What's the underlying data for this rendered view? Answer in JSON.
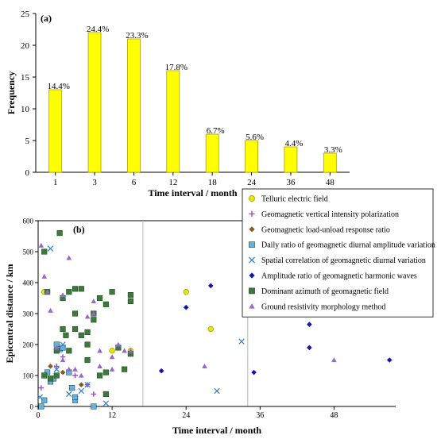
{
  "chart_data": [
    {
      "type": "bar",
      "panel_label": "(a)",
      "xlabel": "Time interval / month",
      "ylabel": "Frequency",
      "ylim": [
        0,
        25
      ],
      "yticks": [
        0,
        5,
        10,
        15,
        20,
        25
      ],
      "categories": [
        "1",
        "3",
        "6",
        "12",
        "18",
        "24",
        "36",
        "48"
      ],
      "values": [
        13,
        22,
        21,
        16,
        6,
        5,
        4,
        3
      ],
      "bar_labels": [
        "14.4%",
        "24.4%",
        "23.3%",
        "17.8%",
        "6.7%",
        "5.6%",
        "4.4%",
        "3.3%"
      ],
      "bar_color": "#ffff00",
      "grid": false
    },
    {
      "type": "scatter",
      "panel_label": "(b)",
      "xlabel": "Time interval / month",
      "ylabel": "Epicentral distance / km",
      "xlim": [
        0,
        58
      ],
      "ylim": [
        0,
        600
      ],
      "xticks": [
        0,
        12,
        24,
        36,
        48
      ],
      "yticks": [
        0,
        100,
        200,
        300,
        400,
        500,
        600
      ],
      "vertical_gridlines_at": [
        17,
        34
      ],
      "legend_position": "top-right",
      "series": [
        {
          "name": "Telluric electric field",
          "marker": "circle",
          "color": "#e6e600",
          "points": [
            [
              1,
              370
            ],
            [
              12,
              180
            ],
            [
              15,
              180
            ],
            [
              24,
              370
            ],
            [
              28,
              250
            ]
          ]
        },
        {
          "name": "Geomagnetic vertical intensity polarization",
          "marker": "plus",
          "color": "#9a4fc2",
          "points": [
            [
              0.5,
              60
            ],
            [
              1,
              100
            ],
            [
              3,
              130
            ],
            [
              4,
              160
            ],
            [
              6,
              100
            ],
            [
              8,
              70
            ],
            [
              9,
              40
            ]
          ]
        },
        {
          "name": "Geomagnetic load-unload response ratio",
          "marker": "diamond",
          "color": "#8b5a1e",
          "points": [
            [
              2,
              130
            ],
            [
              4,
              110
            ],
            [
              7,
              70
            ]
          ]
        },
        {
          "name": "Daily ratio of geomagnetic diurnal amplitude variation",
          "marker": "square",
          "color": "#5fb3e6",
          "points": [
            [
              0.5,
              0
            ],
            [
              1,
              20
            ],
            [
              1.5,
              110
            ],
            [
              2,
              80
            ],
            [
              2.5,
              90
            ],
            [
              3,
              200
            ],
            [
              3.5,
              185
            ],
            [
              4,
              190
            ],
            [
              5,
              110
            ],
            [
              5.5,
              60
            ],
            [
              6,
              20
            ],
            [
              6,
              30
            ],
            [
              9,
              0
            ]
          ]
        },
        {
          "name": "Spatial correlation of geomagnetic diurnal variation",
          "marker": "x",
          "color": "#3a85cf",
          "points": [
            [
              0.3,
              30
            ],
            [
              1,
              100
            ],
            [
              2,
              510
            ],
            [
              3,
              120
            ],
            [
              4,
              200
            ],
            [
              5,
              40
            ],
            [
              7,
              50
            ],
            [
              8,
              70
            ],
            [
              11,
              10
            ],
            [
              29,
              50
            ],
            [
              33,
              210
            ]
          ]
        },
        {
          "name": "Amplitude ratio of geomagnetic harmonic waves",
          "marker": "diamond",
          "color": "#1414b4",
          "points": [
            [
              20,
              115
            ],
            [
              24,
              320
            ],
            [
              28,
              390
            ],
            [
              35,
              110
            ],
            [
              36,
              340
            ],
            [
              44,
              190
            ],
            [
              44,
              265
            ],
            [
              56,
              340
            ],
            [
              57,
              150
            ]
          ]
        },
        {
          "name": "Dominant azimuth of geomagnetic field",
          "marker": "square",
          "color": "#3a7a3a",
          "points": [
            [
              1,
              500
            ],
            [
              1,
              100
            ],
            [
              1.5,
              370
            ],
            [
              2,
              90
            ],
            [
              3,
              180
            ],
            [
              3,
              100
            ],
            [
              3.5,
              560
            ],
            [
              4,
              350
            ],
            [
              4,
              250
            ],
            [
              4.5,
              230
            ],
            [
              5,
              370
            ],
            [
              5,
              180
            ],
            [
              6,
              300
            ],
            [
              6,
              250
            ],
            [
              6,
              380
            ],
            [
              7,
              230
            ],
            [
              7,
              380
            ],
            [
              8,
              200
            ],
            [
              8,
              240
            ],
            [
              8,
              150
            ],
            [
              9,
              280
            ],
            [
              9,
              300
            ],
            [
              10,
              100
            ],
            [
              10,
              350
            ],
            [
              11,
              330
            ],
            [
              11,
              40
            ],
            [
              11,
              110
            ],
            [
              12,
              370
            ],
            [
              13,
              190
            ],
            [
              14,
              120
            ],
            [
              15,
              170
            ],
            [
              15,
              360
            ],
            [
              15,
              340
            ]
          ]
        },
        {
          "name": "Ground resistivity morphology method",
          "marker": "triangle",
          "color": "#9966cc",
          "points": [
            [
              0.5,
              520
            ],
            [
              1,
              420
            ],
            [
              1.5,
              370
            ],
            [
              2,
              310
            ],
            [
              3,
              190
            ],
            [
              4,
              360
            ],
            [
              4,
              150
            ],
            [
              5,
              480
            ],
            [
              5,
              120
            ],
            [
              6,
              120
            ],
            [
              7,
              100
            ],
            [
              8,
              290
            ],
            [
              9,
              300
            ],
            [
              9,
              340
            ],
            [
              10,
              180
            ],
            [
              10,
              130
            ],
            [
              12,
              160
            ],
            [
              12,
              120
            ],
            [
              13,
              200
            ],
            [
              14,
              180
            ],
            [
              15,
              180
            ],
            [
              27,
              130
            ],
            [
              48,
              150
            ]
          ]
        }
      ]
    }
  ]
}
